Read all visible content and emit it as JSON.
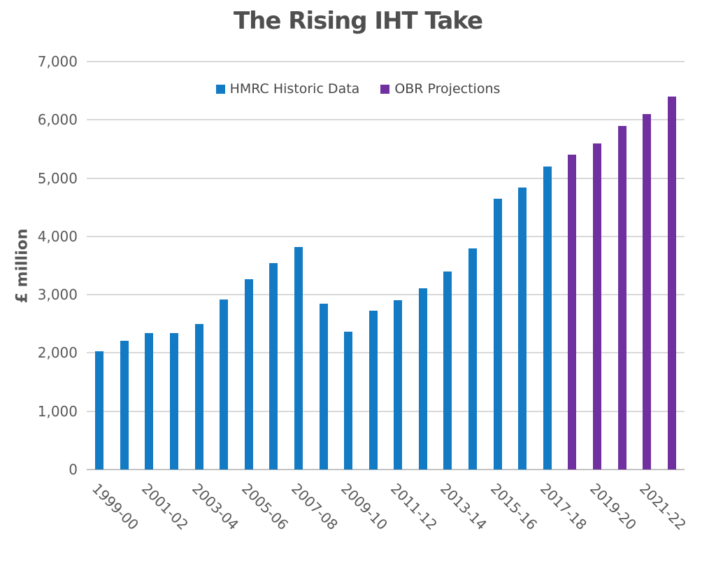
{
  "title": "The Rising IHT Take",
  "y_axis": {
    "label": "£ million",
    "tick_labels": [
      "0",
      "1,000",
      "2,000",
      "3,000",
      "4,000",
      "5,000",
      "6,000",
      "7,000"
    ]
  },
  "legend": {
    "items": [
      {
        "label": "HMRC Historic Data",
        "color": "#137AC4"
      },
      {
        "label": "OBR Projections",
        "color": "#7030A0"
      }
    ]
  },
  "chart_data": {
    "type": "bar",
    "title": "The Rising IHT Take",
    "xlabel": "",
    "ylabel": "£ million",
    "ylim": [
      0,
      7000
    ],
    "y_tick_step": 1000,
    "grid": "horizontal",
    "legend_position": "top-center-inside",
    "x_label_rotation_deg": 45,
    "categories": [
      "1999-00",
      "2000-01",
      "2001-02",
      "2002-03",
      "2003-04",
      "2004-05",
      "2005-06",
      "2006-07",
      "2007-08",
      "2008-09",
      "2009-10",
      "2010-11",
      "2011-12",
      "2012-13",
      "2013-14",
      "2014-15",
      "2015-16",
      "2016-17",
      "2017-18",
      "2018-19",
      "2019-20",
      "2020-21",
      "2021-22",
      "2022-23"
    ],
    "x_tick_labels_shown": [
      "1999-00",
      "2001-02",
      "2003-04",
      "2005-06",
      "2007-08",
      "2009-10",
      "2011-12",
      "2013-14",
      "2015-16",
      "2017-18",
      "2019-20",
      "2021-22"
    ],
    "series": [
      {
        "name": "HMRC Historic Data",
        "color": "#137AC4",
        "values": [
          2030,
          2210,
          2340,
          2340,
          2500,
          2920,
          3270,
          3540,
          3820,
          2840,
          2370,
          2720,
          2900,
          3110,
          3400,
          3800,
          4650,
          4840,
          5200,
          null,
          null,
          null,
          null,
          null
        ]
      },
      {
        "name": "OBR Projections",
        "color": "#7030A0",
        "values": [
          null,
          null,
          null,
          null,
          null,
          null,
          null,
          null,
          null,
          null,
          null,
          null,
          null,
          null,
          null,
          null,
          null,
          null,
          null,
          5400,
          5600,
          5900,
          6100,
          6400
        ]
      }
    ]
  }
}
